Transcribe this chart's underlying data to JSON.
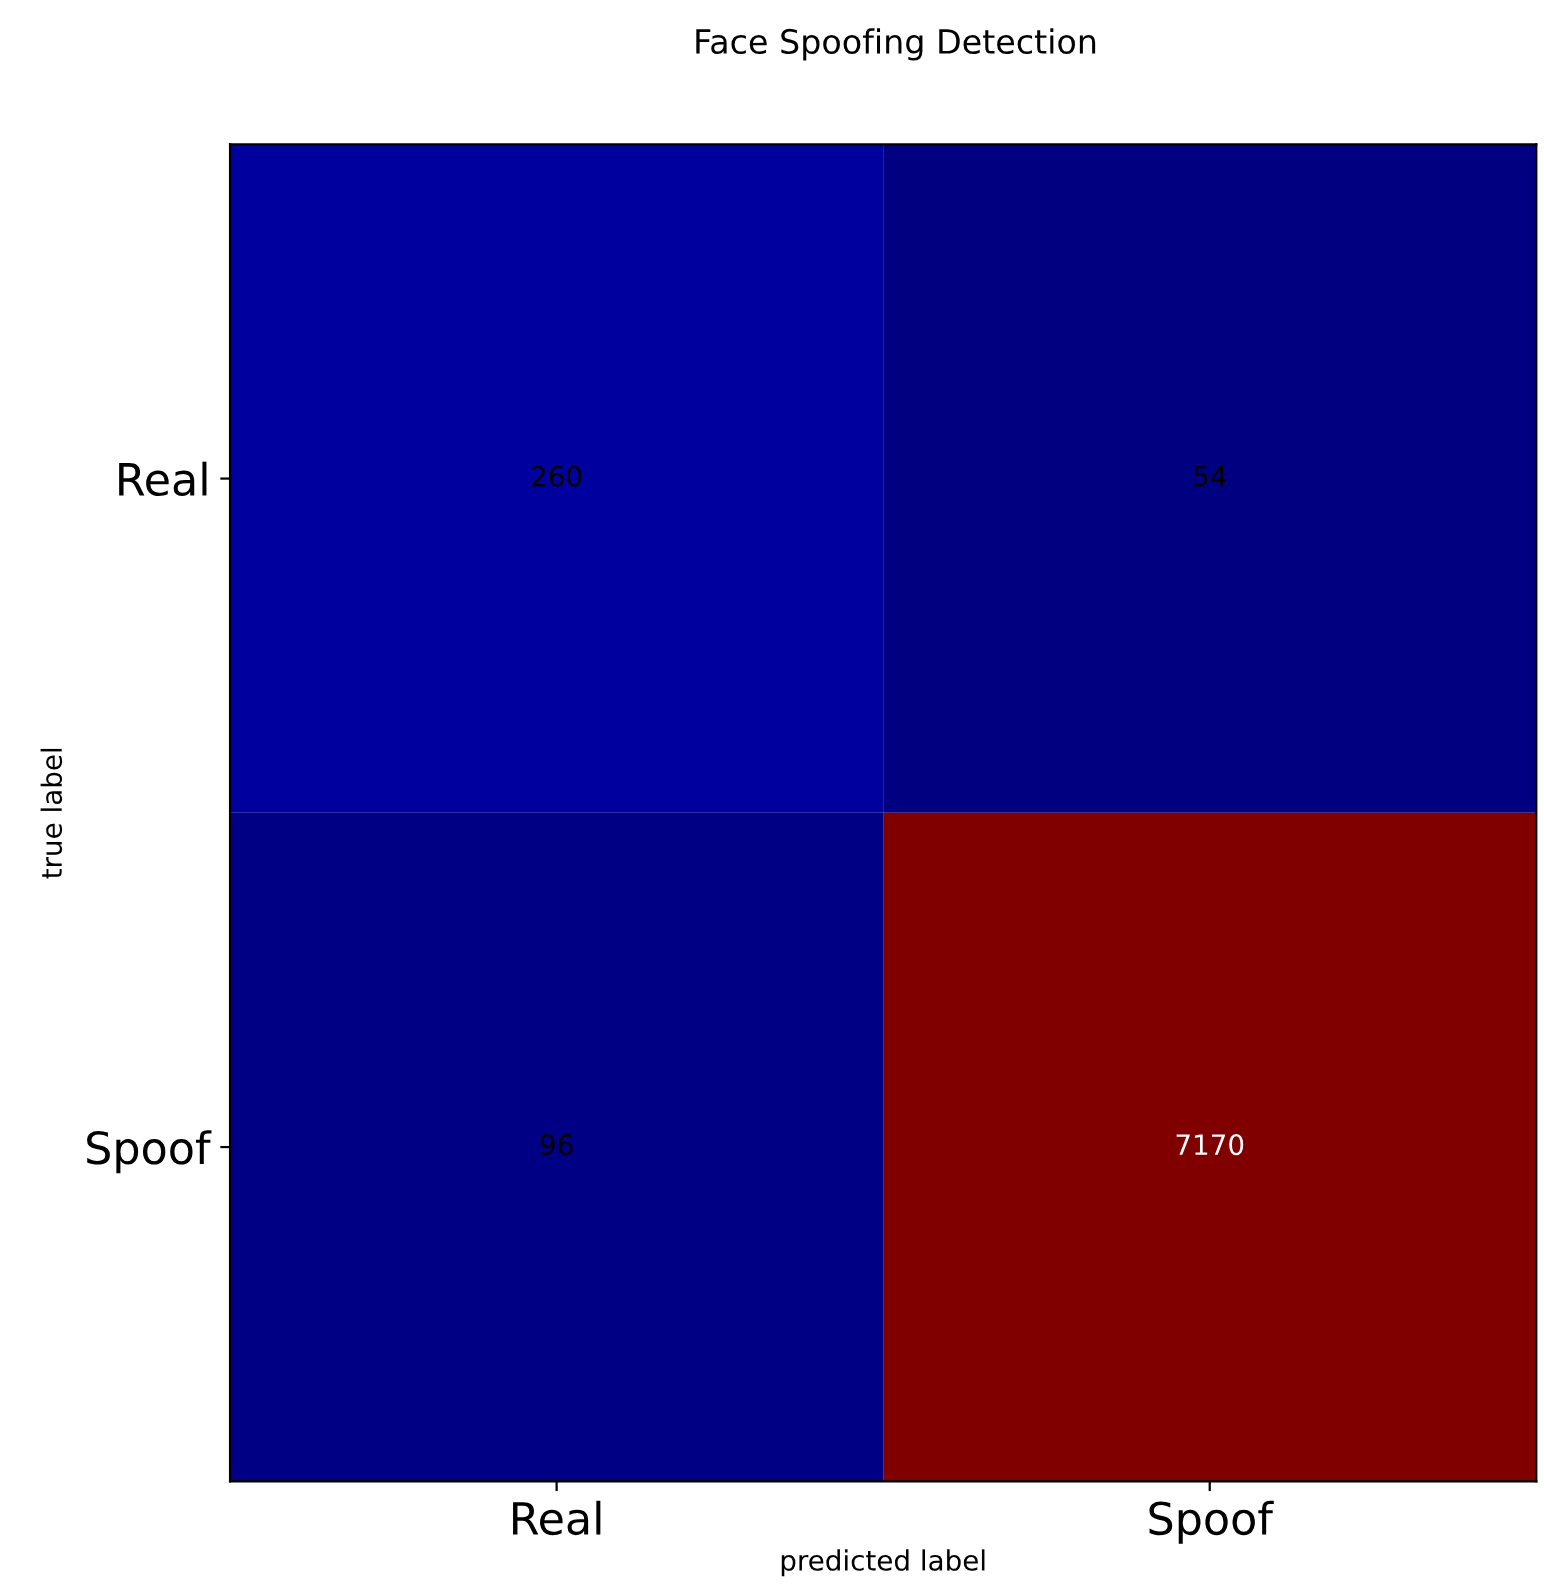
{
  "chart_data": {
    "type": "heatmap",
    "title": "Face Spoofing Detection",
    "xlabel": "predicted label",
    "ylabel": "true label",
    "categories": [
      "Real",
      "Spoof"
    ],
    "y_categories": [
      "Real",
      "Spoof"
    ],
    "cells": [
      [
        260,
        54
      ],
      [
        96,
        7170
      ]
    ],
    "data_labels": true
  }
}
